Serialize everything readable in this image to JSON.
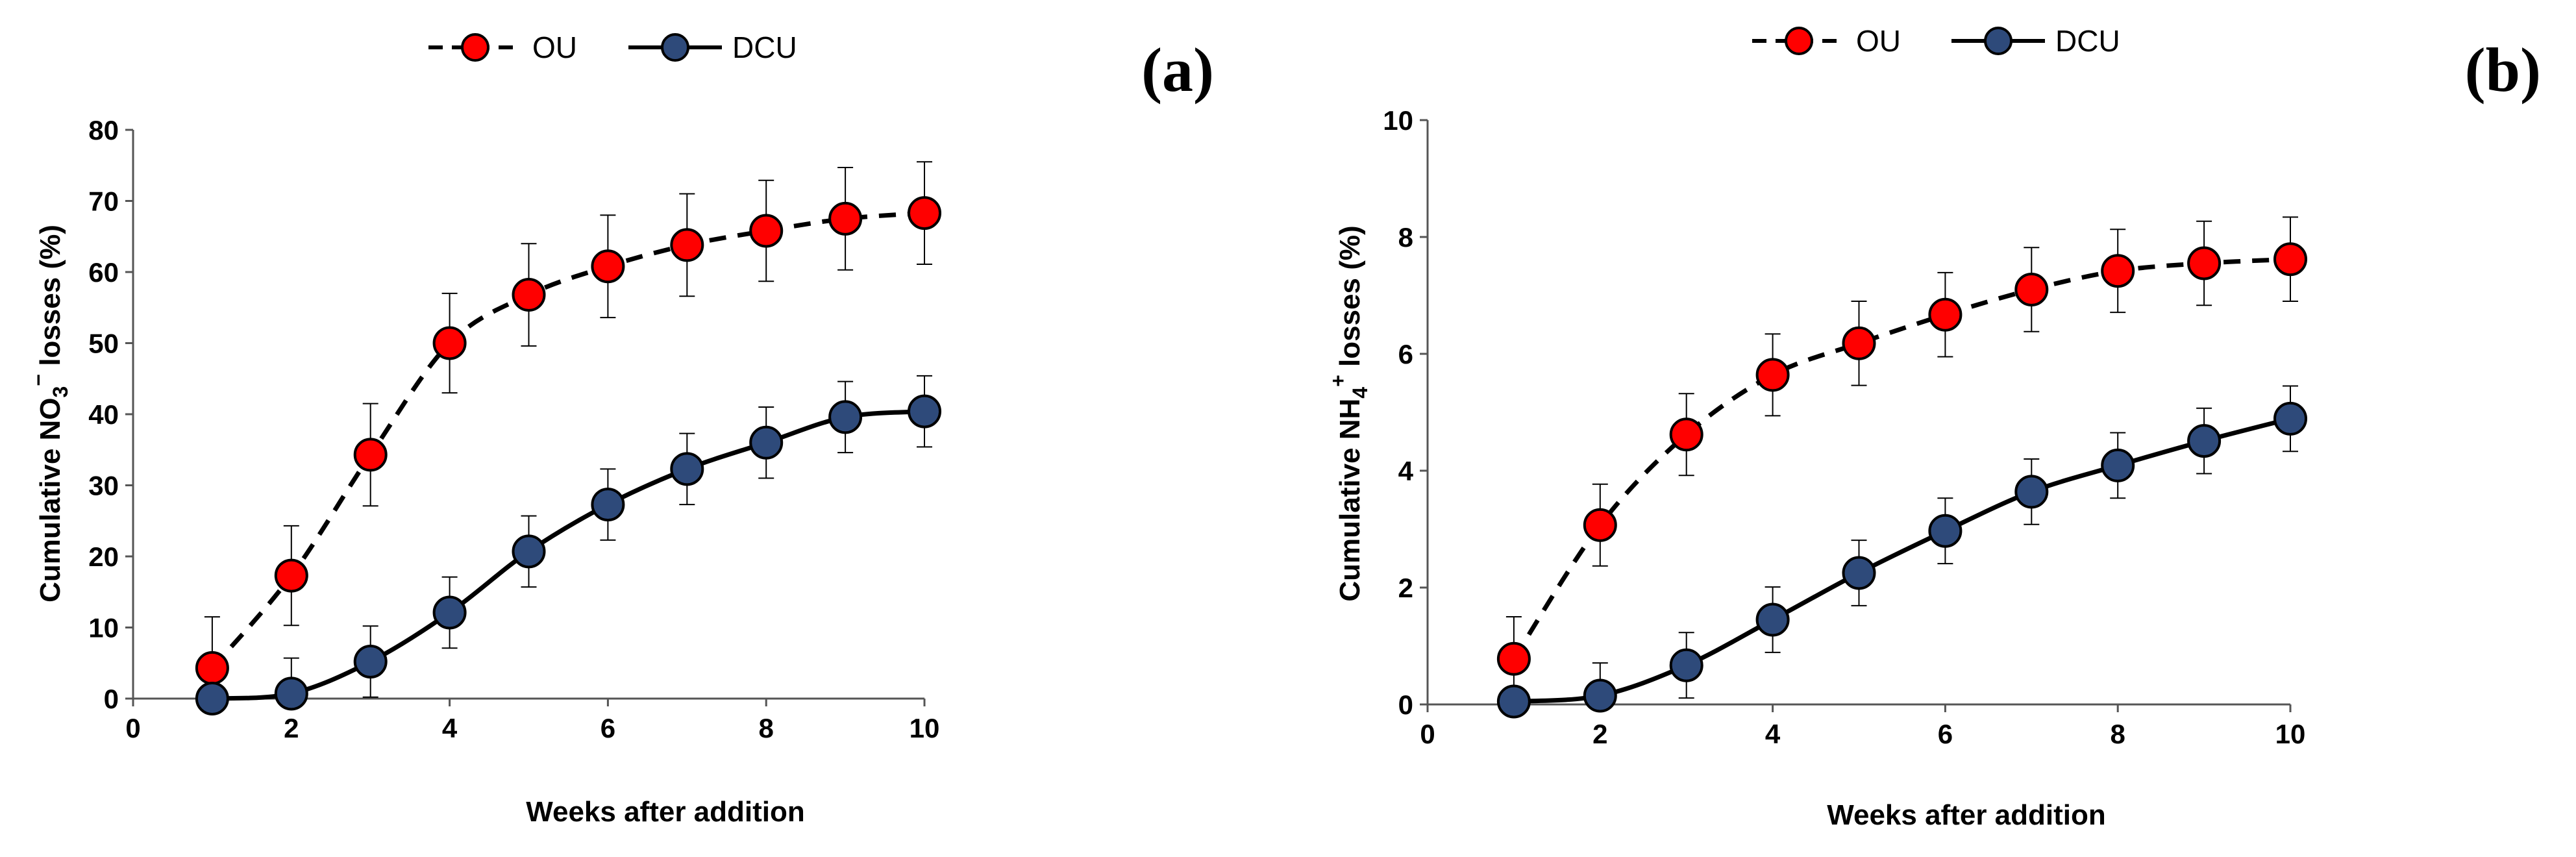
{
  "legend": {
    "ou": "OU",
    "dcu": "DCU"
  },
  "chart_data": [
    {
      "type": "line",
      "panel_label": "(a)",
      "xlabel": "Weeks after addition",
      "ylabel": "Cumulative NO₃⁻ losses (%)",
      "ylabel_parts": {
        "prefix": "Cumulative NO",
        "sub": "3",
        "sup": "−",
        "suffix": " losses (%)"
      },
      "xlim": [
        0,
        10
      ],
      "ylim": [
        0,
        80
      ],
      "xticks": [
        0,
        2,
        4,
        6,
        8,
        10
      ],
      "yticks": [
        0,
        10,
        20,
        30,
        40,
        50,
        60,
        70,
        80
      ],
      "grid": false,
      "legend_position": "top-left",
      "series": [
        {
          "name": "OU",
          "color": "#ff0000",
          "line_style": "dashed",
          "x": [
            1,
            2,
            3,
            4,
            5,
            6,
            7,
            8,
            9,
            10
          ],
          "y": [
            4.3,
            17.3,
            34.3,
            50.0,
            56.8,
            60.8,
            63.8,
            65.8,
            67.5,
            68.3
          ],
          "error": [
            7.2,
            7.0,
            7.2,
            7.0,
            7.2,
            7.2,
            7.2,
            7.1,
            7.2,
            7.2
          ]
        },
        {
          "name": "DCU",
          "color": "#2e4a7a",
          "line_style": "solid",
          "x": [
            1,
            2,
            3,
            4,
            5,
            6,
            7,
            8,
            9,
            10
          ],
          "y": [
            0.0,
            0.7,
            5.2,
            12.1,
            20.7,
            27.3,
            32.3,
            36.0,
            39.6,
            40.4
          ],
          "error": [
            0.0,
            5.0,
            5.0,
            5.0,
            5.0,
            5.0,
            5.0,
            5.0,
            5.0,
            5.0
          ]
        }
      ]
    },
    {
      "type": "line",
      "panel_label": "(b)",
      "xlabel": "Weeks after addition",
      "ylabel": "Cumulative NH₄⁺ losses (%)",
      "ylabel_parts": {
        "prefix": "Cumulative NH",
        "sub": "4",
        "sup": "+",
        "suffix": " losses (%)"
      },
      "xlim": [
        0,
        10
      ],
      "ylim": [
        0,
        10
      ],
      "xticks": [
        0,
        2,
        4,
        6,
        8,
        10
      ],
      "yticks": [
        0,
        2,
        4,
        6,
        8,
        10
      ],
      "grid": false,
      "legend_position": "top-left",
      "series": [
        {
          "name": "OU",
          "color": "#ff0000",
          "line_style": "dashed",
          "x": [
            1,
            2,
            3,
            4,
            5,
            6,
            7,
            8,
            9,
            10
          ],
          "y": [
            0.78,
            3.07,
            4.62,
            5.64,
            6.18,
            6.67,
            7.1,
            7.42,
            7.55,
            7.62
          ],
          "error": [
            0.72,
            0.7,
            0.7,
            0.7,
            0.72,
            0.72,
            0.72,
            0.71,
            0.72,
            0.72
          ]
        },
        {
          "name": "DCU",
          "color": "#2e4a7a",
          "line_style": "solid",
          "x": [
            1,
            2,
            3,
            4,
            5,
            6,
            7,
            8,
            9,
            10
          ],
          "y": [
            0.05,
            0.15,
            0.67,
            1.45,
            2.25,
            2.97,
            3.64,
            4.09,
            4.51,
            4.89
          ],
          "error": [
            0.0,
            0.56,
            0.56,
            0.56,
            0.56,
            0.56,
            0.56,
            0.56,
            0.56,
            0.56
          ]
        }
      ]
    }
  ]
}
